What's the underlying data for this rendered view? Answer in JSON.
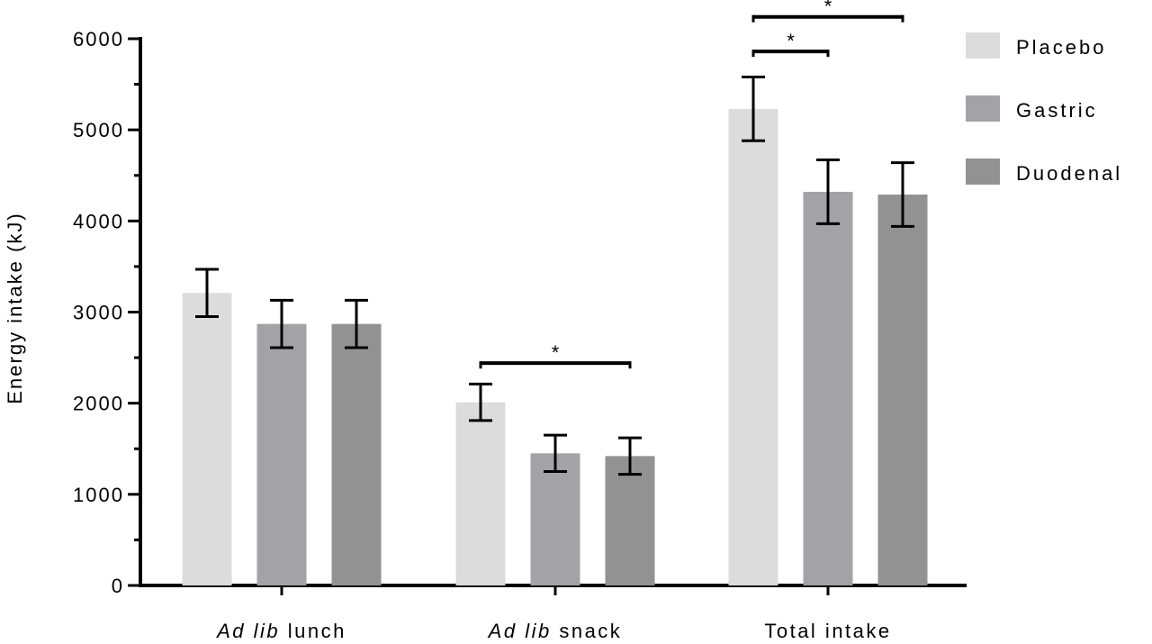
{
  "chart_data": {
    "type": "bar",
    "title": "",
    "ylabel": "Energy intake (kJ)",
    "xlabel": "",
    "ylim": [
      0,
      6000
    ],
    "yticks": [
      "0",
      "1000",
      "2000",
      "3000",
      "4000",
      "5000",
      "6000"
    ],
    "ytick_values": [
      0,
      1000,
      2000,
      3000,
      4000,
      5000,
      6000
    ],
    "categories": [
      {
        "italic": "Ad lib",
        "rest": "lunch"
      },
      {
        "italic": "Ad lib",
        "rest": "snack"
      },
      {
        "italic": "",
        "rest": "Total intake"
      }
    ],
    "series": [
      {
        "name": "Placebo",
        "color": "#dcdcdc",
        "values": [
          3210,
          2010,
          5230
        ],
        "errors": [
          260,
          200,
          350
        ]
      },
      {
        "name": "Gastric",
        "color": "#a3a3a7",
        "values": [
          2870,
          1450,
          4320
        ],
        "errors": [
          260,
          200,
          350
        ]
      },
      {
        "name": "Duodenal",
        "color": "#929292",
        "values": [
          2870,
          1420,
          4290
        ],
        "errors": [
          260,
          200,
          350
        ]
      }
    ],
    "significance": [
      {
        "category": 1,
        "from": 0,
        "to": 2,
        "y": 2440,
        "label": "*"
      },
      {
        "category": 2,
        "from": 0,
        "to": 1,
        "y": 5860,
        "label": "*"
      },
      {
        "category": 2,
        "from": 0,
        "to": 2,
        "y": 6240,
        "label": "*"
      }
    ],
    "legend_position": "top-right",
    "grid": false
  }
}
